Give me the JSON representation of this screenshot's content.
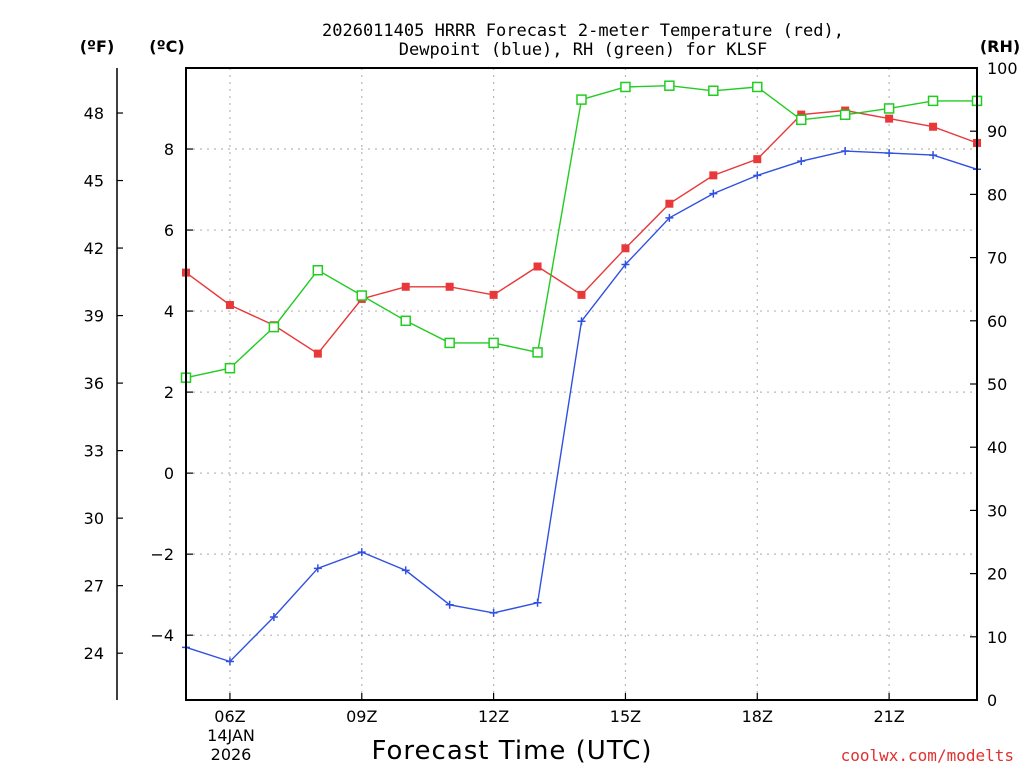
{
  "chart_data": {
    "type": "line",
    "title_line1": "2026011405 HRRR Forecast 2-meter Temperature (red),",
    "title_line2": "Dewpoint (blue), RH (green) for KLSF",
    "xlabel": "Forecast Time (UTC)",
    "unit_f": "(ºF)",
    "unit_c": "(ºC)",
    "unit_rh": "(RH)",
    "credit": "coolwx.com/modelts",
    "date_line1": "14JAN",
    "date_line2": "2026",
    "x_hours": [
      5,
      6,
      7,
      8,
      9,
      10,
      11,
      12,
      13,
      14,
      15,
      16,
      17,
      18,
      19,
      20,
      21,
      22,
      23
    ],
    "x_range": [
      5,
      23
    ],
    "x_ticks": [
      {
        "hour": 6,
        "label": "06Z"
      },
      {
        "hour": 9,
        "label": "09Z"
      },
      {
        "hour": 12,
        "label": "12Z"
      },
      {
        "hour": 15,
        "label": "15Z"
      },
      {
        "hour": 18,
        "label": "18Z"
      },
      {
        "hour": 21,
        "label": "21Z"
      }
    ],
    "c_range": [
      -5.6,
      10.0
    ],
    "c_ticks": [
      {
        "v": 8,
        "label": "8"
      },
      {
        "v": 6,
        "label": "6"
      },
      {
        "v": 4,
        "label": "4"
      },
      {
        "v": 2,
        "label": "2"
      },
      {
        "v": 0,
        "label": "0"
      },
      {
        "v": -2,
        "label": "−2"
      },
      {
        "v": -4,
        "label": "−4"
      }
    ],
    "f_ticks": [
      {
        "v": 48,
        "label": "48"
      },
      {
        "v": 45,
        "label": "45"
      },
      {
        "v": 42,
        "label": "42"
      },
      {
        "v": 39,
        "label": "39"
      },
      {
        "v": 36,
        "label": "36"
      },
      {
        "v": 33,
        "label": "33"
      },
      {
        "v": 30,
        "label": "30"
      },
      {
        "v": 27,
        "label": "27"
      },
      {
        "v": 24,
        "label": "24"
      }
    ],
    "rh_range": [
      0,
      100
    ],
    "rh_ticks": [
      {
        "v": 100,
        "label": "100"
      },
      {
        "v": 90,
        "label": "90"
      },
      {
        "v": 80,
        "label": "80"
      },
      {
        "v": 70,
        "label": "70"
      },
      {
        "v": 60,
        "label": "60"
      },
      {
        "v": 50,
        "label": "50"
      },
      {
        "v": 40,
        "label": "40"
      },
      {
        "v": 30,
        "label": "30"
      },
      {
        "v": 20,
        "label": "20"
      },
      {
        "v": 10,
        "label": "10"
      },
      {
        "v": 0,
        "label": "0"
      }
    ],
    "series": [
      {
        "name": "Temperature (°C)",
        "axis": "c",
        "color": "#e8383a",
        "marker": "filled-square",
        "values": [
          4.95,
          4.15,
          3.65,
          2.95,
          4.3,
          4.6,
          4.6,
          4.4,
          5.1,
          4.4,
          5.55,
          6.65,
          7.35,
          7.75,
          8.85,
          8.95,
          8.75,
          8.55,
          8.15
        ]
      },
      {
        "name": "Dewpoint (°C)",
        "axis": "c",
        "color": "#3050e0",
        "marker": "plus",
        "values": [
          -4.3,
          -4.65,
          -3.55,
          -2.35,
          -1.95,
          -2.4,
          -3.25,
          -3.45,
          -3.2,
          3.75,
          5.15,
          6.3,
          6.9,
          7.35,
          7.7,
          7.95,
          7.9,
          7.85,
          7.5
        ]
      },
      {
        "name": "RH (%)",
        "axis": "rh",
        "color": "#22cc22",
        "marker": "open-square",
        "values": [
          51,
          52.5,
          59,
          68,
          64,
          60,
          56.5,
          56.5,
          55,
          95,
          97,
          97.2,
          96.4,
          97,
          91.8,
          92.6,
          93.6,
          94.8,
          94.8
        ]
      }
    ]
  }
}
